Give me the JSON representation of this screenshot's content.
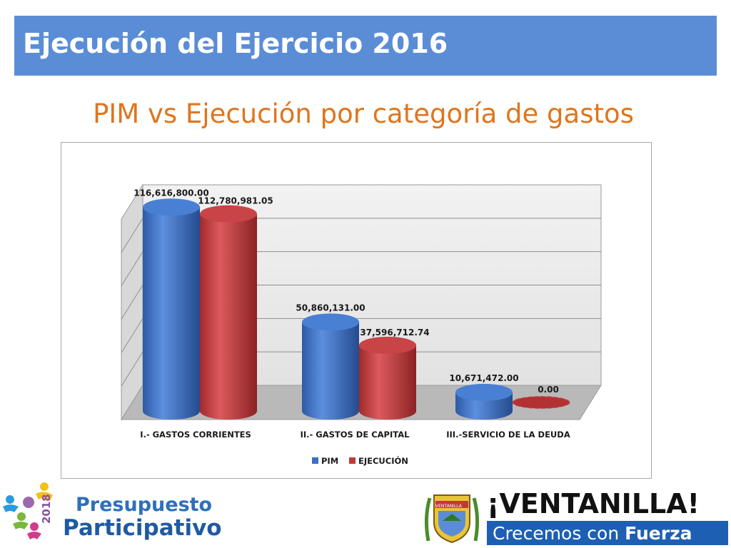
{
  "header": {
    "title": "Ejecución del Ejercicio 2016"
  },
  "subtitle": "PIM vs Ejecución por categoría de gastos",
  "chart_data": {
    "type": "bar",
    "style": "3d-cylinder",
    "categories": [
      "I.- GASTOS CORRIENTES",
      "II.- GASTOS DE CAPITAL",
      "III.-SERVICIO DE LA DEUDA"
    ],
    "series": [
      {
        "name": "PIM",
        "color": "#3a6fc4",
        "values": [
          116616800.0,
          50860131.0,
          10671472.0
        ],
        "labels": [
          "116,616,800.00",
          "50,860,131.00",
          "10,671,472.00"
        ]
      },
      {
        "name": "EJECUCIÓN",
        "color": "#c0393b",
        "values": [
          112780981.05,
          37596712.74,
          0.0
        ],
        "labels": [
          "112,780,981.05",
          "37,596,712.74",
          "0.00"
        ]
      }
    ],
    "ylim": [
      0,
      140000000
    ],
    "grid": true,
    "legend": "bottom"
  },
  "footer": {
    "left_logo": {
      "line1": "Presupuesto",
      "line2": "Participativo",
      "year": "2018"
    },
    "right_logo": {
      "shield_text": "VENTANILLA",
      "name": "¡VENTANILLA!",
      "slogan_regular": "Crecemos con ",
      "slogan_bold": "Fuerza"
    }
  }
}
